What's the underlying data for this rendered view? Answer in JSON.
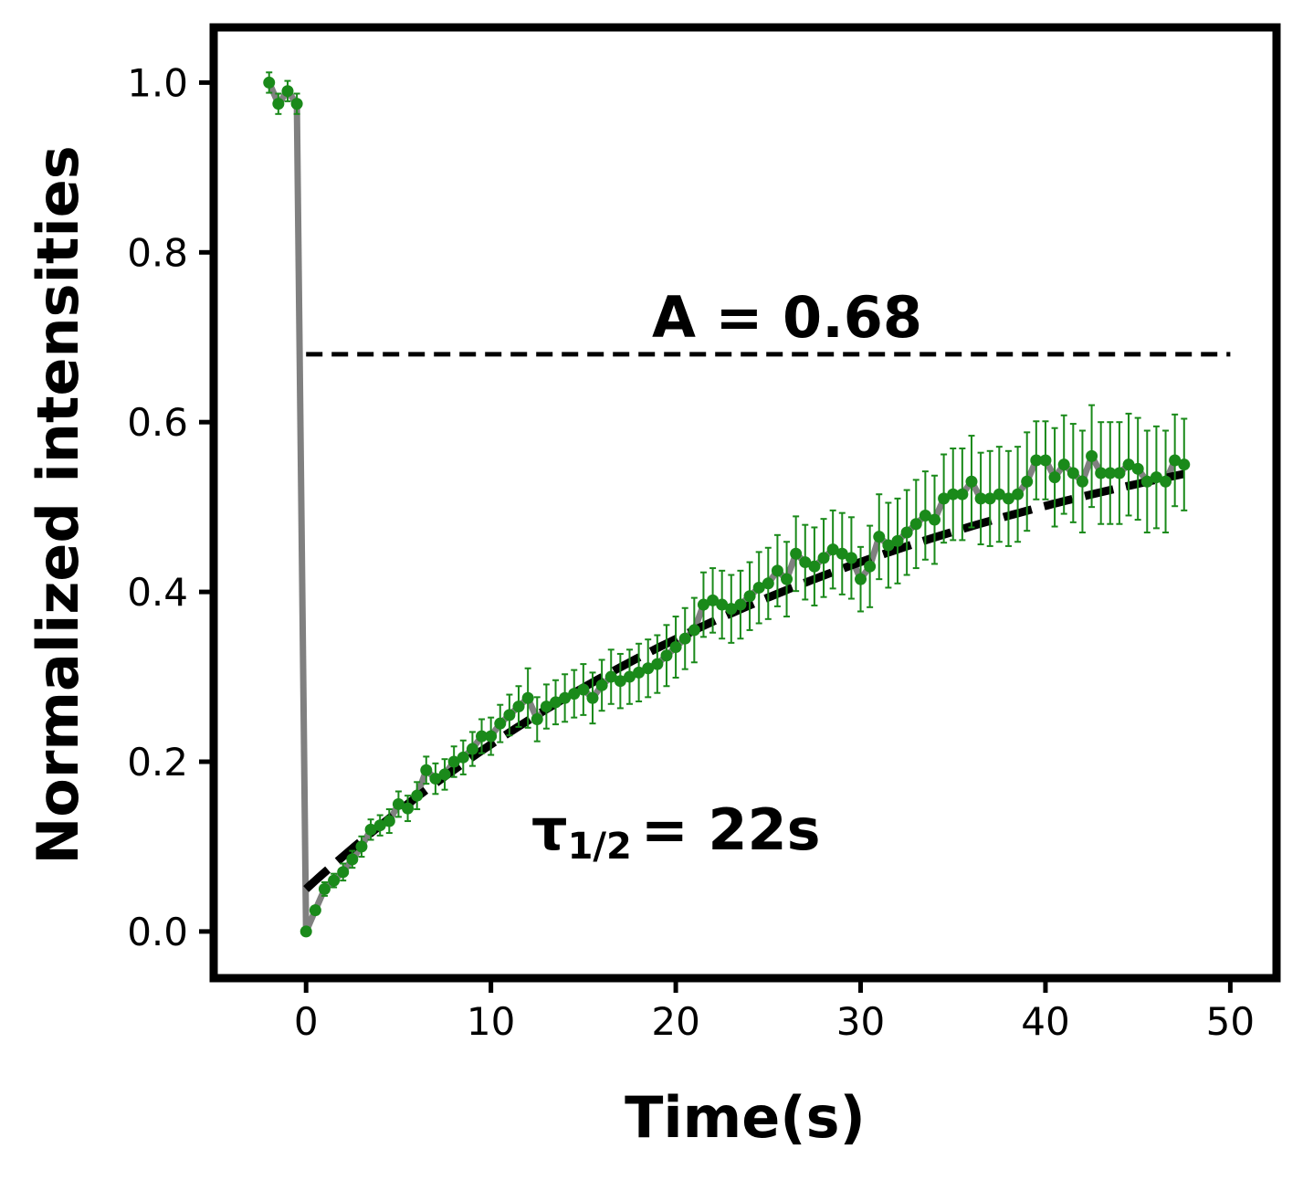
{
  "chart_data": {
    "type": "line",
    "xlabel": "Time(s)",
    "ylabel": "Normalized intensities",
    "xlim": [
      -5,
      52.5
    ],
    "ylim": [
      -0.055,
      1.065
    ],
    "xticks": [
      0,
      10,
      20,
      30,
      40,
      50
    ],
    "xtick_labels": [
      "0",
      "10",
      "20",
      "30",
      "40",
      "50"
    ],
    "yticks": [
      0.0,
      0.2,
      0.4,
      0.6,
      0.8,
      1.0
    ],
    "ytick_labels": [
      "0.0",
      "0.2",
      "0.4",
      "0.6",
      "0.8",
      "1.0"
    ],
    "grid": false,
    "annotations": {
      "plateau_label": "A = 0.68",
      "tau_symbol": "τ",
      "tau_subscript": "1/2",
      "tau_value": "= 22s"
    },
    "plateau": {
      "y": 0.68,
      "x_from": 0,
      "x_to": 50
    },
    "fit": {
      "x_from": 0,
      "x_to": 47.5,
      "y0": 0.05,
      "A": 0.68,
      "t_half": 22
    },
    "colors": {
      "data": "#1a8a1a",
      "connecting_line": "#808080",
      "fit": "#000000",
      "plateau": "#000000"
    },
    "series": {
      "x": [
        -2.0,
        -1.5,
        -1.0,
        -0.5,
        0.0,
        0.5,
        1.0,
        1.5,
        2.0,
        2.5,
        3.0,
        3.5,
        4.0,
        4.5,
        5.0,
        5.5,
        6.0,
        6.5,
        7.0,
        7.5,
        8.0,
        8.5,
        9.0,
        9.5,
        10.0,
        10.5,
        11.0,
        11.5,
        12.0,
        12.5,
        13.0,
        13.5,
        14.0,
        14.5,
        15.0,
        15.5,
        16.0,
        16.5,
        17.0,
        17.5,
        18.0,
        18.5,
        19.0,
        19.5,
        20.0,
        20.5,
        21.0,
        21.5,
        22.0,
        22.5,
        23.0,
        23.5,
        24.0,
        24.5,
        25.0,
        25.5,
        26.0,
        26.5,
        27.0,
        27.5,
        28.0,
        28.5,
        29.0,
        29.5,
        30.0,
        30.5,
        31.0,
        31.5,
        32.0,
        32.5,
        33.0,
        33.5,
        34.0,
        34.5,
        35.0,
        35.5,
        36.0,
        36.5,
        37.0,
        37.5,
        38.0,
        38.5,
        39.0,
        39.5,
        40.0,
        40.5,
        41.0,
        41.5,
        42.0,
        42.5,
        43.0,
        43.5,
        44.0,
        44.5,
        45.0,
        45.5,
        46.0,
        46.5,
        47.0,
        47.5
      ],
      "y": [
        1.0,
        0.975,
        0.99,
        0.975,
        0.0,
        0.025,
        0.05,
        0.06,
        0.07,
        0.085,
        0.1,
        0.12,
        0.125,
        0.13,
        0.15,
        0.145,
        0.16,
        0.19,
        0.18,
        0.185,
        0.2,
        0.205,
        0.215,
        0.23,
        0.23,
        0.245,
        0.255,
        0.265,
        0.275,
        0.25,
        0.265,
        0.27,
        0.275,
        0.28,
        0.285,
        0.275,
        0.29,
        0.3,
        0.295,
        0.3,
        0.305,
        0.31,
        0.315,
        0.325,
        0.335,
        0.345,
        0.355,
        0.385,
        0.39,
        0.385,
        0.38,
        0.385,
        0.395,
        0.405,
        0.41,
        0.425,
        0.415,
        0.445,
        0.435,
        0.43,
        0.44,
        0.45,
        0.445,
        0.44,
        0.415,
        0.43,
        0.465,
        0.455,
        0.46,
        0.47,
        0.48,
        0.49,
        0.485,
        0.51,
        0.515,
        0.515,
        0.53,
        0.51,
        0.51,
        0.515,
        0.51,
        0.515,
        0.53,
        0.555,
        0.555,
        0.535,
        0.55,
        0.54,
        0.53,
        0.56,
        0.54,
        0.54,
        0.54,
        0.55,
        0.545,
        0.53,
        0.535,
        0.53,
        0.555,
        0.55
      ],
      "err": [
        0.012,
        0.012,
        0.012,
        0.012,
        0.0,
        0.005,
        0.008,
        0.008,
        0.01,
        0.01,
        0.012,
        0.012,
        0.012,
        0.014,
        0.015,
        0.015,
        0.016,
        0.016,
        0.018,
        0.018,
        0.018,
        0.02,
        0.02,
        0.02,
        0.022,
        0.022,
        0.024,
        0.024,
        0.035,
        0.026,
        0.026,
        0.026,
        0.028,
        0.028,
        0.03,
        0.03,
        0.03,
        0.032,
        0.032,
        0.032,
        0.034,
        0.034,
        0.034,
        0.036,
        0.036,
        0.036,
        0.038,
        0.038,
        0.038,
        0.04,
        0.04,
        0.04,
        0.04,
        0.042,
        0.042,
        0.042,
        0.044,
        0.044,
        0.044,
        0.046,
        0.046,
        0.046,
        0.048,
        0.048,
        0.038,
        0.048,
        0.05,
        0.05,
        0.05,
        0.05,
        0.052,
        0.052,
        0.052,
        0.052,
        0.054,
        0.054,
        0.054,
        0.054,
        0.056,
        0.056,
        0.056,
        0.056,
        0.058,
        0.046,
        0.046,
        0.058,
        0.058,
        0.058,
        0.06,
        0.06,
        0.06,
        0.06,
        0.06,
        0.06,
        0.06,
        0.06,
        0.06,
        0.06,
        0.054,
        0.054
      ]
    }
  }
}
